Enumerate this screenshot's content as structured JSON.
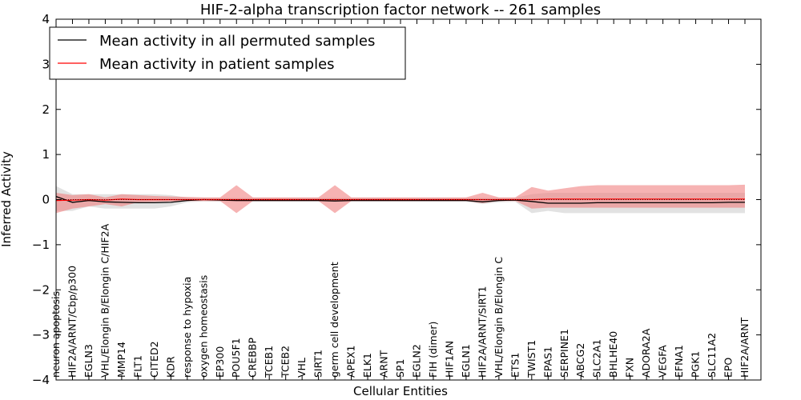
{
  "chart_data": {
    "type": "line",
    "title": "HIF-2-alpha transcription factor network -- 261 samples",
    "xlabel": "Cellular Entities",
    "ylabel": "Inferred Activity",
    "ylim": [
      -4,
      4
    ],
    "yticks": [
      -4,
      -3,
      -2,
      -1,
      0,
      1,
      2,
      3,
      4
    ],
    "ytick_labels": [
      "−4",
      "−3",
      "−2",
      "−1",
      "0",
      "1",
      "2",
      "3",
      "4"
    ],
    "legend_position": "top-left",
    "categories": [
      "neuron apoptosis",
      "HIF2A/ARNT/Cbp/p300",
      "EGLN3",
      "VHL/Elongin B/Elongin C/HIF2A",
      "MMP14",
      "FLT1",
      "CITED2",
      "KDR",
      "response to hypoxia",
      "oxygen homeostasis",
      "EP300",
      "POU5F1",
      "CREBBP",
      "TCEB1",
      "TCEB2",
      "VHL",
      "SIRT1",
      "germ cell development",
      "APEX1",
      "ELK1",
      "ARNT",
      "SP1",
      "EGLN2",
      "FIH (dimer)",
      "HIF1AN",
      "EGLN1",
      "HIF2A/ARNT/SIRT1",
      "VHL/Elongin B/Elongin C",
      "ETS1",
      "TWIST1",
      "EPAS1",
      "SERPINE1",
      "ABCG2",
      "SLC2A1",
      "BHLHE40",
      "FXN",
      "ADORA2A",
      "VEGFA",
      "EFNA1",
      "PGK1",
      "SLC11A2",
      "EPO",
      "HIF2A/ARNT"
    ],
    "series": [
      {
        "name": "Mean activity in all permuted samples",
        "color": "#000000",
        "values": [
          0.07,
          -0.06,
          -0.02,
          -0.05,
          -0.06,
          -0.07,
          -0.07,
          -0.06,
          -0.02,
          0.0,
          -0.01,
          -0.02,
          -0.02,
          -0.02,
          -0.02,
          -0.02,
          -0.02,
          -0.03,
          -0.02,
          -0.02,
          -0.02,
          -0.02,
          -0.02,
          -0.02,
          -0.02,
          -0.02,
          -0.05,
          -0.02,
          -0.01,
          -0.04,
          -0.08,
          -0.08,
          -0.08,
          -0.07,
          -0.07,
          -0.07,
          -0.07,
          -0.07,
          -0.07,
          -0.07,
          -0.07,
          -0.06,
          -0.06
        ],
        "lower": [
          -0.25,
          -0.25,
          -0.15,
          -0.2,
          -0.2,
          -0.2,
          -0.2,
          -0.15,
          -0.06,
          -0.04,
          -0.05,
          -0.05,
          -0.05,
          -0.05,
          -0.05,
          -0.05,
          -0.05,
          -0.05,
          -0.05,
          -0.05,
          -0.05,
          -0.05,
          -0.05,
          -0.05,
          -0.05,
          -0.05,
          -0.1,
          -0.06,
          -0.05,
          -0.3,
          -0.25,
          -0.3,
          -0.3,
          -0.3,
          -0.3,
          -0.3,
          -0.3,
          -0.3,
          -0.3,
          -0.3,
          -0.3,
          -0.3,
          -0.3
        ],
        "upper": [
          0.3,
          0.12,
          0.12,
          0.12,
          0.12,
          0.12,
          0.12,
          0.1,
          0.04,
          0.04,
          0.04,
          0.04,
          0.04,
          0.04,
          0.04,
          0.04,
          0.04,
          0.04,
          0.04,
          0.04,
          0.04,
          0.04,
          0.04,
          0.04,
          0.04,
          0.04,
          0.04,
          0.04,
          0.04,
          0.12,
          0.15,
          0.15,
          0.15,
          0.15,
          0.15,
          0.15,
          0.15,
          0.15,
          0.15,
          0.15,
          0.15,
          0.15,
          0.15
        ]
      },
      {
        "name": "Mean activity in patient samples",
        "color": "#ff0000",
        "values": [
          -0.02,
          -0.01,
          0.0,
          -0.01,
          0.01,
          0.0,
          0.0,
          0.0,
          0.0,
          0.0,
          0.0,
          0.0,
          0.0,
          0.0,
          0.0,
          0.0,
          0.0,
          0.0,
          0.0,
          0.0,
          0.0,
          0.0,
          0.0,
          0.0,
          0.0,
          0.0,
          0.0,
          0.0,
          0.0,
          0.0,
          0.01,
          0.01,
          0.01,
          0.01,
          0.01,
          0.01,
          0.01,
          0.01,
          0.01,
          0.01,
          0.01,
          0.01,
          0.01
        ],
        "lower": [
          -0.3,
          -0.2,
          -0.15,
          -0.1,
          -0.15,
          -0.06,
          -0.05,
          -0.04,
          -0.03,
          -0.03,
          -0.03,
          -0.3,
          -0.03,
          -0.03,
          -0.03,
          -0.03,
          -0.03,
          -0.3,
          -0.03,
          -0.03,
          -0.03,
          -0.03,
          -0.03,
          -0.03,
          -0.03,
          -0.03,
          -0.08,
          -0.03,
          -0.03,
          -0.2,
          -0.18,
          -0.18,
          -0.18,
          -0.18,
          -0.18,
          -0.18,
          -0.18,
          -0.18,
          -0.18,
          -0.18,
          -0.18,
          -0.18,
          -0.18
        ],
        "upper": [
          0.15,
          0.1,
          0.12,
          0.05,
          0.12,
          0.1,
          0.08,
          0.07,
          0.06,
          0.05,
          0.05,
          0.32,
          0.05,
          0.05,
          0.05,
          0.05,
          0.05,
          0.32,
          0.05,
          0.05,
          0.05,
          0.05,
          0.05,
          0.05,
          0.05,
          0.05,
          0.15,
          0.05,
          0.05,
          0.28,
          0.2,
          0.25,
          0.3,
          0.32,
          0.32,
          0.32,
          0.32,
          0.32,
          0.32,
          0.32,
          0.32,
          0.32,
          0.33
        ]
      }
    ]
  }
}
